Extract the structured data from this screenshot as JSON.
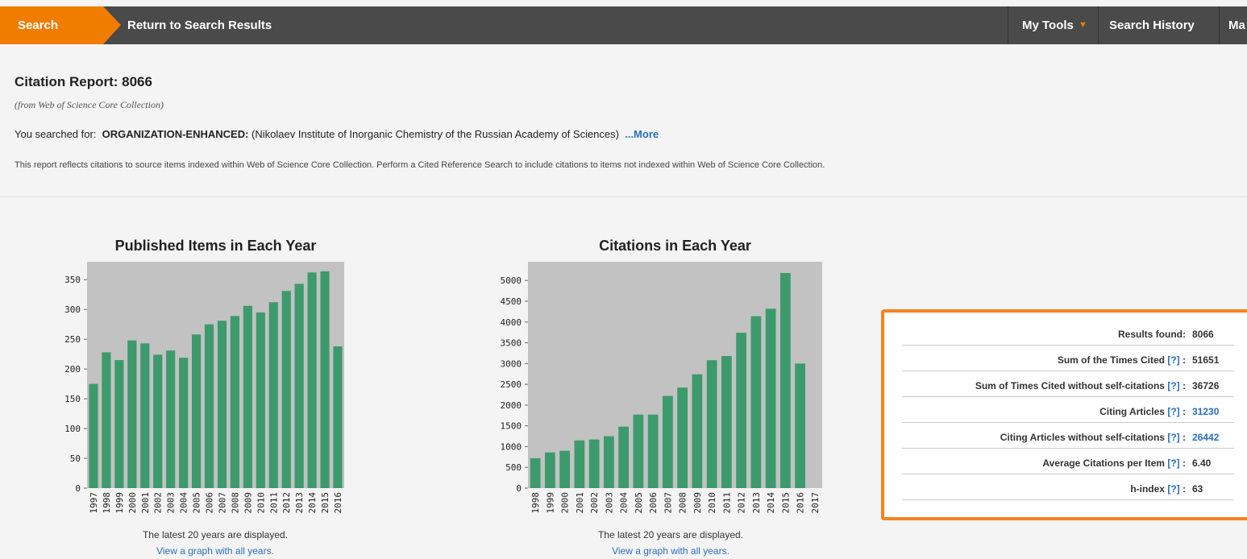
{
  "nav": {
    "tab": "Search",
    "back": "Return to Search Results",
    "tools": "My Tools",
    "history": "Search History",
    "marked": "Ma"
  },
  "header": {
    "title": "Citation Report: 8066",
    "source": "(from Web of Science Core Collection)",
    "searched_label": "You searched for:",
    "field": "ORGANIZATION-ENHANCED:",
    "query": "(Nikolaev Institute of Inorganic Chemistry of the Russian Academy of Sciences)",
    "more": "...More",
    "note": "This report reflects citations to source items indexed within Web of Science Core Collection. Perform a Cited Reference Search to include citations to items not indexed within Web of Science Core Collection."
  },
  "chart_data": [
    {
      "type": "bar",
      "title": "Published Items in Each Year",
      "color": "#3d9a6c",
      "categories": [
        "1997",
        "1998",
        "1999",
        "2000",
        "2001",
        "2002",
        "2003",
        "2004",
        "2005",
        "2006",
        "2007",
        "2008",
        "2009",
        "2010",
        "2011",
        "2012",
        "2013",
        "2014",
        "2015",
        "2016"
      ],
      "values": [
        175,
        228,
        215,
        248,
        243,
        224,
        231,
        219,
        258,
        275,
        281,
        289,
        306,
        295,
        312,
        331,
        343,
        362,
        364,
        238
      ],
      "ylim": [
        0,
        380
      ],
      "yticks": [
        0,
        50,
        100,
        150,
        200,
        250,
        300,
        350
      ]
    },
    {
      "type": "bar",
      "title": "Citations in Each Year",
      "color": "#3d9a6c",
      "categories": [
        "1998",
        "1999",
        "2000",
        "2001",
        "2002",
        "2003",
        "2004",
        "2005",
        "2006",
        "2007",
        "2008",
        "2009",
        "2010",
        "2011",
        "2012",
        "2013",
        "2014",
        "2015",
        "2016",
        "2017"
      ],
      "values": [
        720,
        860,
        900,
        1150,
        1170,
        1250,
        1480,
        1770,
        1770,
        2220,
        2420,
        2740,
        3080,
        3180,
        3740,
        4140,
        4320,
        5180,
        3000,
        null
      ],
      "ylim": [
        0,
        5450
      ],
      "yticks": [
        0,
        500,
        1000,
        1500,
        2000,
        2500,
        3000,
        3500,
        4000,
        4500,
        5000
      ]
    }
  ],
  "chart_notes": [
    {
      "note": "The latest 20 years are displayed.",
      "link": "View a graph with all years."
    },
    {
      "note": "The latest 20 years are displayed.",
      "link": "View a graph with all years."
    }
  ],
  "stats": {
    "rows": [
      {
        "label": "Results found:",
        "value": "8066"
      },
      {
        "label": "Sum of the Times Cited",
        "help": "[?]",
        "sep": ":",
        "value": "51651"
      },
      {
        "label": "Sum of Times Cited without self-citations",
        "help": "[?]",
        "sep": ":",
        "value": "36726"
      },
      {
        "label": "Citing Articles",
        "help": "[?]",
        "sep": ":",
        "value": "31230"
      },
      {
        "label": "Citing Articles without self-citations",
        "help": "[?]",
        "sep": ":",
        "value": "26442"
      },
      {
        "label": "Average Citations per Item",
        "help": "[?]",
        "sep": ":",
        "value": "6.40"
      },
      {
        "label": "h-index",
        "help": "[?]",
        "sep": ":",
        "value": "63"
      }
    ]
  }
}
